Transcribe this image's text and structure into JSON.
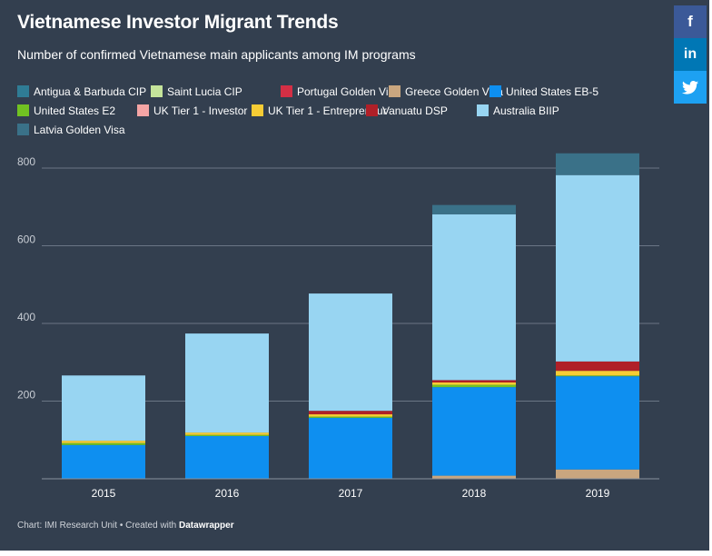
{
  "header": {
    "title": "Vietnamese Investor Migrant Trends",
    "subtitle": "Number of confirmed Vietnamese main applicants among IM programs"
  },
  "social": {
    "facebook_label": "f",
    "linkedin_label": "in"
  },
  "footer": {
    "source": "Chart: IMI Research Unit • Created with ",
    "tool": "Datawrapper"
  },
  "colors": {
    "background": "#333f4f",
    "gridline": "#6b7685",
    "axis_text": "#ffffff"
  },
  "chart_data": {
    "type": "bar",
    "stacked": true,
    "categories": [
      "2015",
      "2016",
      "2017",
      "2018",
      "2019"
    ],
    "ylim": [
      0,
      800
    ],
    "yticks": [
      200,
      400,
      600,
      800
    ],
    "grid": true,
    "legend_position": "top",
    "title": "Vietnamese Investor Migrant Trends",
    "subtitle": "Number of confirmed Vietnamese main applicants among IM programs",
    "series": [
      {
        "name": "Antigua & Barbuda CIP",
        "color": "#2f7c95",
        "values": [
          0,
          0,
          0,
          0,
          0
        ]
      },
      {
        "name": "Saint Lucia CIP",
        "color": "#c5e49b",
        "values": [
          0,
          0,
          0,
          0,
          0
        ]
      },
      {
        "name": "Portugal Golden Visa",
        "color": "#d42f45",
        "values": [
          0,
          0,
          0,
          0,
          0
        ]
      },
      {
        "name": "Greece Golden Visa",
        "color": "#c9a67f",
        "values": [
          0,
          0,
          0,
          8,
          24
        ]
      },
      {
        "name": "United States EB-5",
        "color": "#0e8ff0",
        "values": [
          87,
          110,
          157,
          228,
          240
        ]
      },
      {
        "name": "United States E2",
        "color": "#71c222",
        "values": [
          5,
          3,
          3,
          6,
          2
        ]
      },
      {
        "name": "UK Tier 1 - Investor",
        "color": "#f5a5a5",
        "values": [
          0,
          0,
          0,
          0,
          0
        ]
      },
      {
        "name": "UK Tier 1 - Entrepreneur",
        "color": "#f7cc35",
        "values": [
          6,
          6,
          6,
          6,
          12
        ]
      },
      {
        "name": "Vanuatu DSP",
        "color": "#b02028",
        "values": [
          0,
          0,
          9,
          6,
          24
        ]
      },
      {
        "name": "Australia BIIP",
        "color": "#98d5f2",
        "values": [
          168,
          255,
          302,
          427,
          480
        ]
      },
      {
        "name": "Latvia Golden Visa",
        "color": "#3a7188",
        "values": [
          0,
          0,
          0,
          24,
          56
        ]
      }
    ]
  }
}
